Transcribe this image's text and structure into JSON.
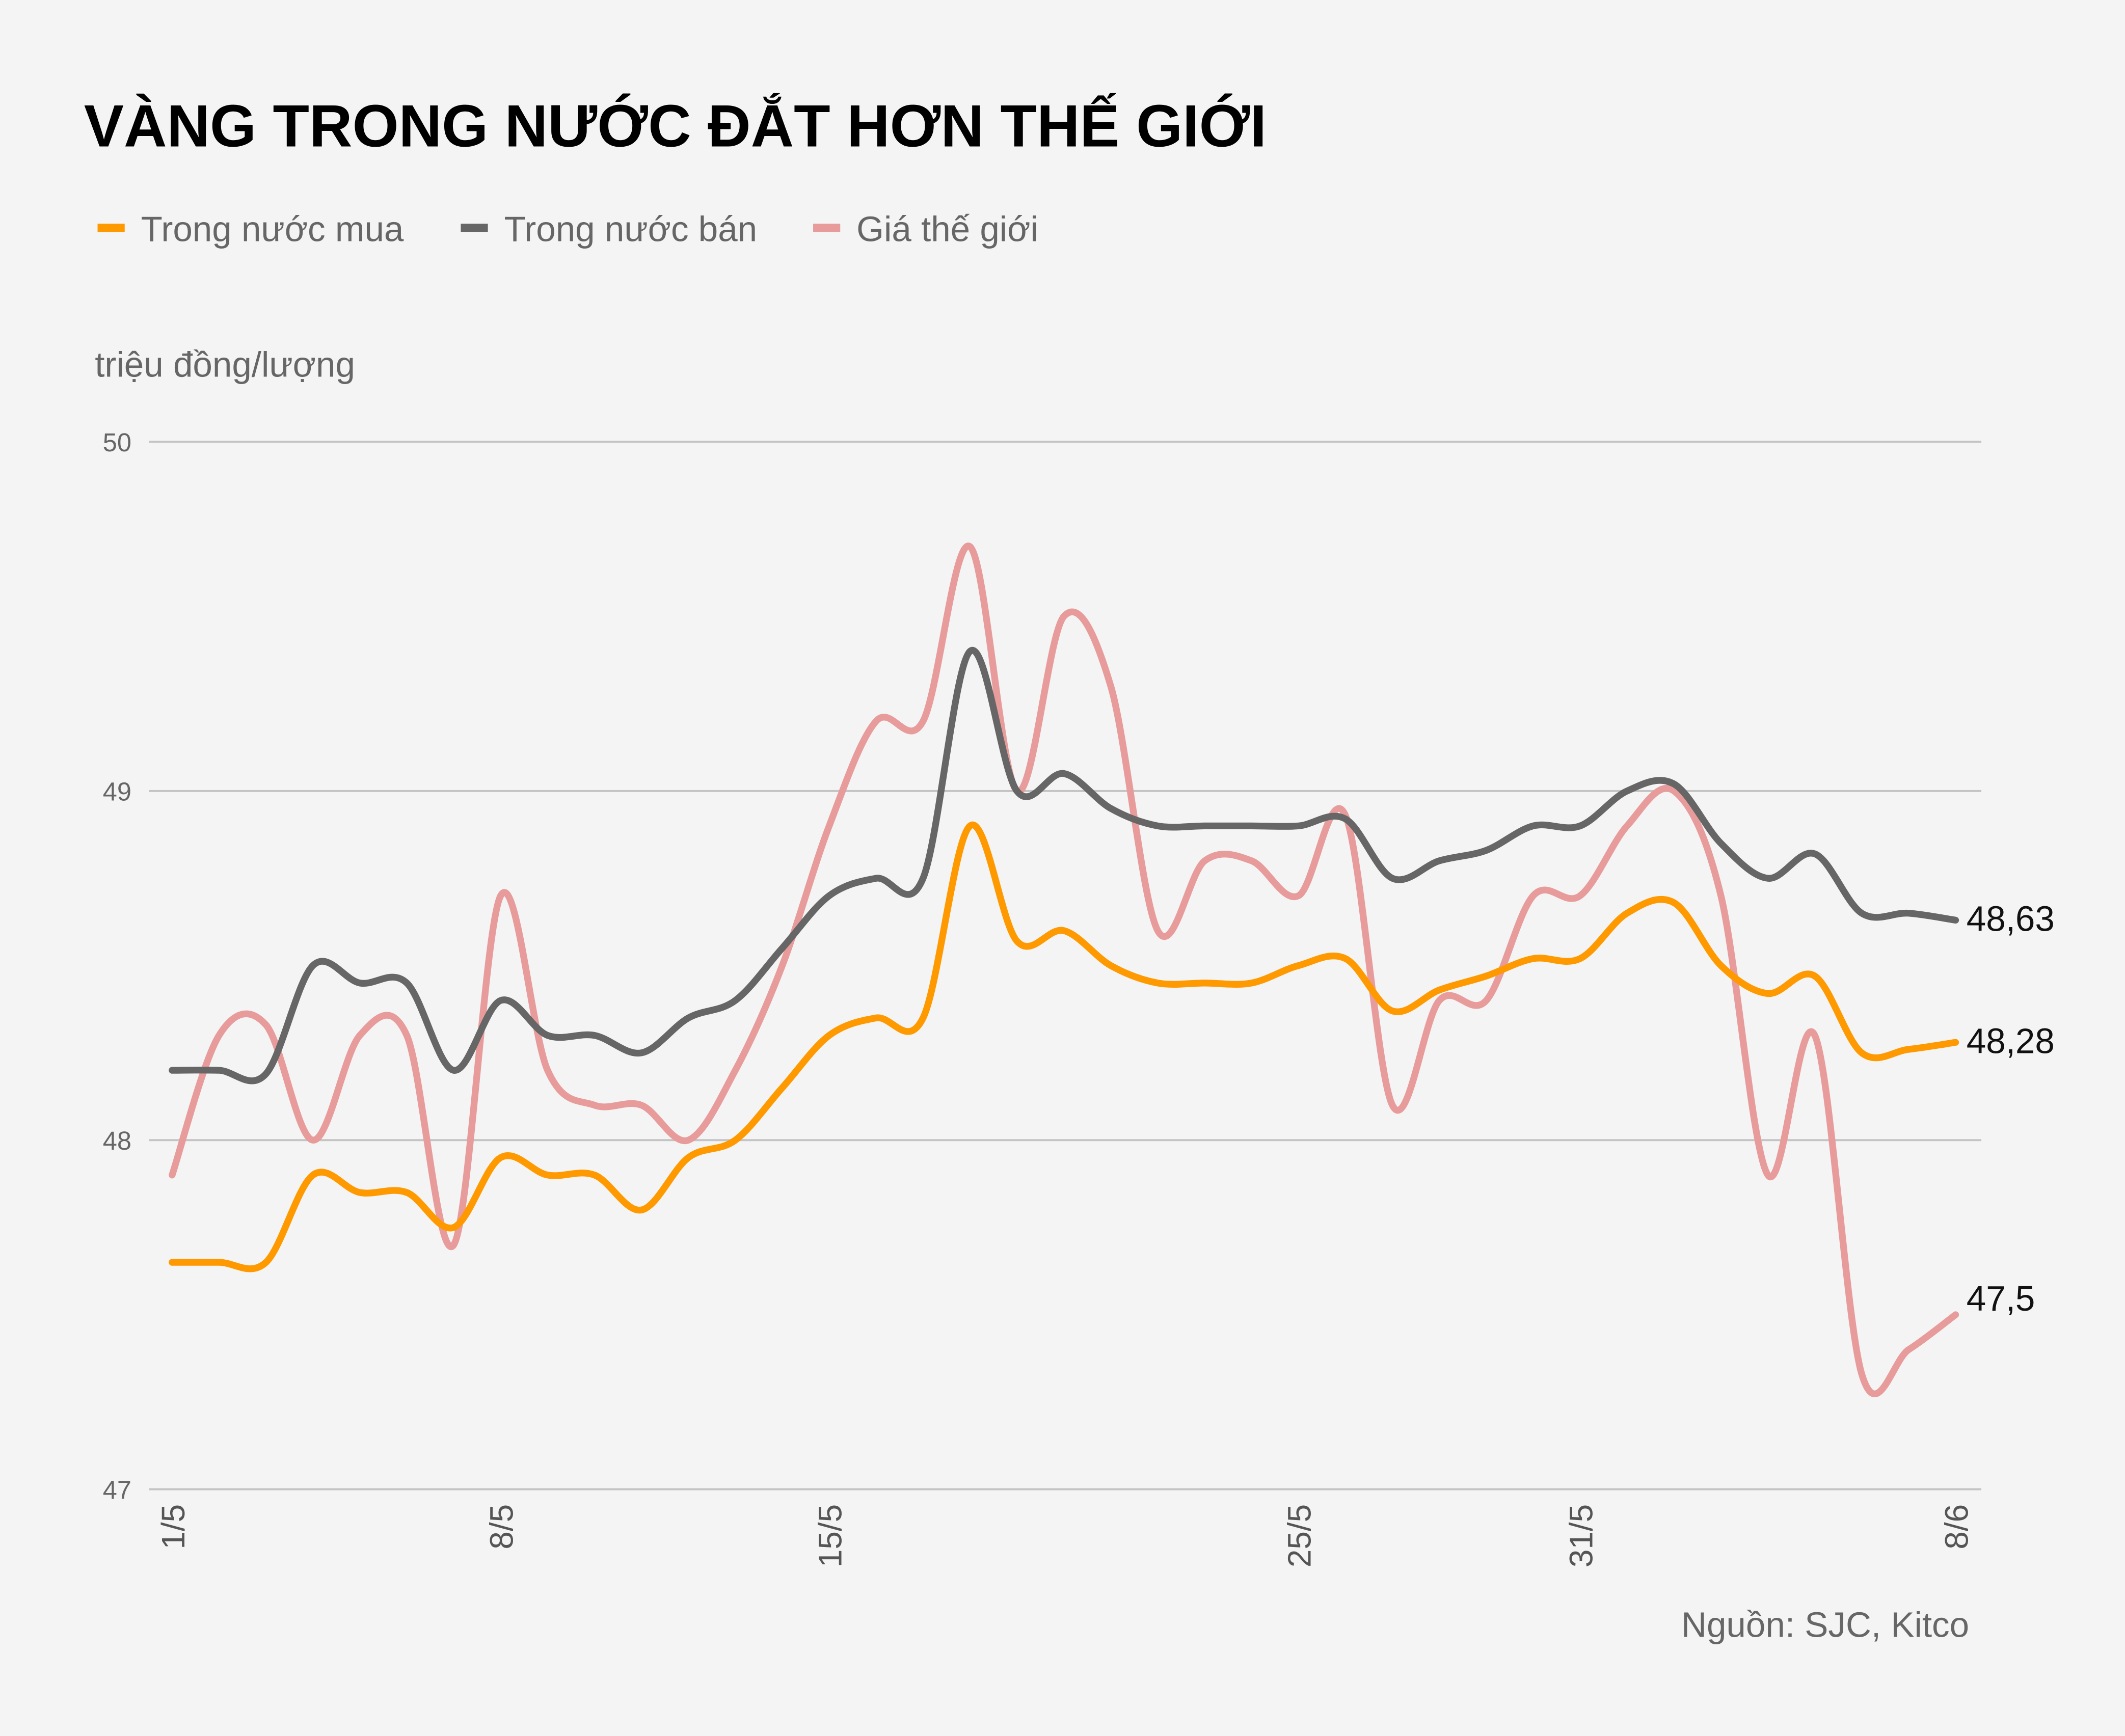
{
  "chart_data": {
    "type": "line",
    "title": "VÀNG TRONG NƯỚC ĐẮT HƠN THẾ GIỚI",
    "ylabel": "triệu đồng/lượng",
    "source": "Nguồn: SJC, Kitco",
    "ylim": [
      47,
      50
    ],
    "yticks": [
      "47",
      "48",
      "49",
      "50"
    ],
    "grid": true,
    "legend_placement": "top-left",
    "x": [
      "1/5",
      "2/5",
      "3/5",
      "4/5",
      "5/5",
      "6/5",
      "7/5",
      "8/5",
      "9/5",
      "10/5",
      "11/5",
      "12/5",
      "13/5",
      "14/5",
      "15/5",
      "16/5",
      "17/5",
      "18/5",
      "19/5",
      "20/5",
      "21/5",
      "22/5",
      "23/5",
      "24/5",
      "25/5",
      "26/5",
      "27/5",
      "28/5",
      "29/5",
      "30/5",
      "31/5",
      "1/6",
      "2/6",
      "3/6",
      "4/6",
      "5/6",
      "6/6",
      "7/6",
      "8/6"
    ],
    "xtick_labels": [
      "1/5",
      "8/5",
      "15/5",
      "25/5",
      "31/5",
      "8/6"
    ],
    "series": [
      {
        "name": "Trong nước mua",
        "color": "#ff9900",
        "end_label": "48,28",
        "values": [
          47.65,
          47.65,
          47.65,
          47.9,
          47.85,
          47.85,
          47.75,
          47.95,
          47.9,
          47.9,
          47.8,
          47.95,
          48.0,
          48.15,
          48.3,
          48.35,
          48.35,
          48.9,
          48.57,
          48.6,
          48.5,
          48.45,
          48.45,
          48.45,
          48.5,
          48.52,
          48.37,
          48.43,
          48.47,
          48.52,
          48.52,
          48.65,
          48.68,
          48.5,
          48.42,
          48.47,
          48.25,
          48.26,
          48.28
        ]
      },
      {
        "name": "Trong nước bán",
        "color": "#666666",
        "end_label": "48,63",
        "values": [
          48.2,
          48.2,
          48.19,
          48.5,
          48.45,
          48.45,
          48.2,
          48.4,
          48.3,
          48.3,
          48.25,
          48.35,
          48.4,
          48.55,
          48.7,
          48.75,
          48.75,
          49.4,
          49.0,
          49.05,
          48.95,
          48.9,
          48.9,
          48.9,
          48.9,
          48.92,
          48.75,
          48.8,
          48.83,
          48.9,
          48.9,
          49.0,
          49.02,
          48.85,
          48.75,
          48.82,
          48.65,
          48.65,
          48.63
        ]
      },
      {
        "name": "Giá thế giới",
        "color": "#e89b9b",
        "end_label": "47,5",
        "values": [
          47.9,
          48.3,
          48.33,
          48.0,
          48.3,
          48.3,
          47.7,
          48.7,
          48.2,
          48.1,
          48.1,
          48.0,
          48.2,
          48.5,
          48.9,
          49.2,
          49.2,
          49.7,
          49.0,
          49.5,
          49.3,
          48.6,
          48.8,
          48.8,
          48.7,
          48.93,
          48.1,
          48.4,
          48.4,
          48.7,
          48.7,
          48.9,
          49.0,
          48.7,
          47.9,
          48.3,
          47.33,
          47.4,
          47.5
        ]
      }
    ]
  }
}
